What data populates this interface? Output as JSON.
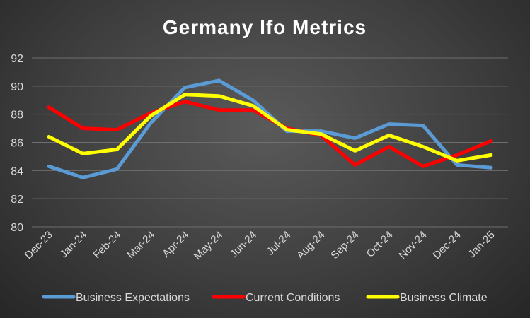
{
  "chart_data": {
    "type": "line",
    "title": "Germany Ifo Metrics",
    "categories": [
      "Dec-23",
      "Jan-24",
      "Feb-24",
      "Mar-24",
      "Apr-24",
      "May-24",
      "Jun-24",
      "Jul-24",
      "Aug-24",
      "Sep-24",
      "Oct-24",
      "Nov-24",
      "Dec-24",
      "Jan-25"
    ],
    "ylim": [
      80,
      92
    ],
    "yticks": [
      80,
      82,
      84,
      86,
      88,
      90,
      92
    ],
    "grid": true,
    "legend": "bottom",
    "series": [
      {
        "name": "Business Expectations",
        "color": "#5b9bd5",
        "values": [
          84.3,
          83.5,
          84.1,
          87.4,
          89.9,
          90.4,
          89.0,
          86.8,
          86.8,
          86.3,
          87.3,
          87.2,
          84.4,
          84.2
        ]
      },
      {
        "name": "Current Conditions",
        "color": "#ff0000",
        "values": [
          88.5,
          87.0,
          86.9,
          88.1,
          88.9,
          88.3,
          88.3,
          87.0,
          86.5,
          84.4,
          85.7,
          84.3,
          85.1,
          86.1
        ]
      },
      {
        "name": "Business Climate",
        "color": "#ffff00",
        "values": [
          86.4,
          85.2,
          85.5,
          87.9,
          89.4,
          89.3,
          88.6,
          86.9,
          86.6,
          85.4,
          86.5,
          85.7,
          84.7,
          85.1
        ]
      }
    ]
  }
}
